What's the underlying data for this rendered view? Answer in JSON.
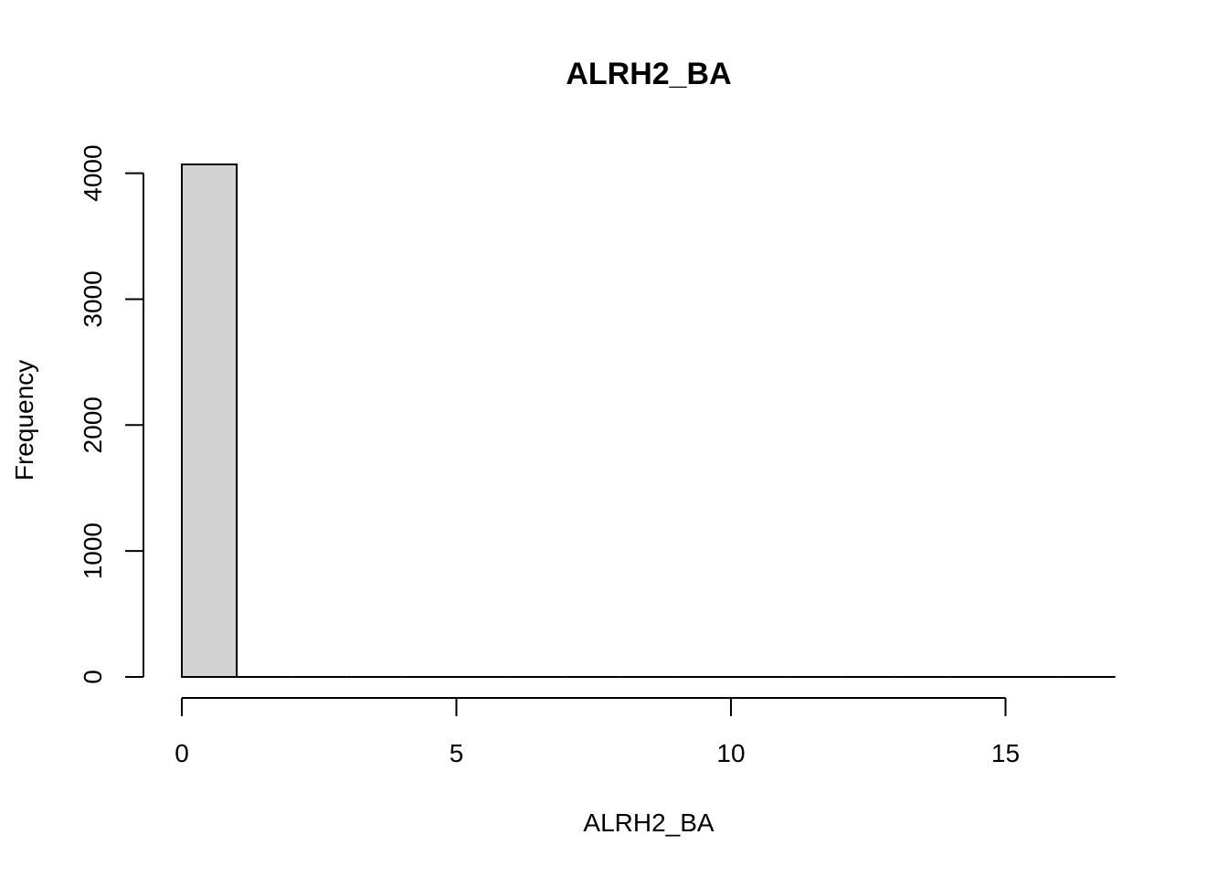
{
  "chart_data": {
    "type": "bar",
    "title": "ALRH2_BA",
    "xlabel": "ALRH2_BA",
    "ylabel": "Frequency",
    "bins": [
      {
        "start": 0,
        "end": 1,
        "count": 4070
      },
      {
        "start": 1,
        "end": 2,
        "count": 0
      },
      {
        "start": 2,
        "end": 3,
        "count": 0
      },
      {
        "start": 3,
        "end": 4,
        "count": 0
      },
      {
        "start": 4,
        "end": 5,
        "count": 0
      },
      {
        "start": 5,
        "end": 6,
        "count": 0
      },
      {
        "start": 6,
        "end": 7,
        "count": 0
      },
      {
        "start": 7,
        "end": 8,
        "count": 0
      },
      {
        "start": 8,
        "end": 9,
        "count": 0
      },
      {
        "start": 9,
        "end": 10,
        "count": 0
      },
      {
        "start": 10,
        "end": 11,
        "count": 0
      },
      {
        "start": 11,
        "end": 12,
        "count": 0
      },
      {
        "start": 12,
        "end": 13,
        "count": 0
      },
      {
        "start": 13,
        "end": 14,
        "count": 0
      },
      {
        "start": 14,
        "end": 15,
        "count": 0
      },
      {
        "start": 15,
        "end": 16,
        "count": 0
      },
      {
        "start": 16,
        "end": 17,
        "count": 0
      }
    ],
    "xticks": [
      0,
      5,
      10,
      15
    ],
    "yticks": [
      0,
      1000,
      2000,
      3000,
      4000
    ],
    "xlim": [
      0,
      17
    ],
    "ylim": [
      0,
      4000
    ],
    "bar_color": "#d3d3d3",
    "grid": false
  }
}
